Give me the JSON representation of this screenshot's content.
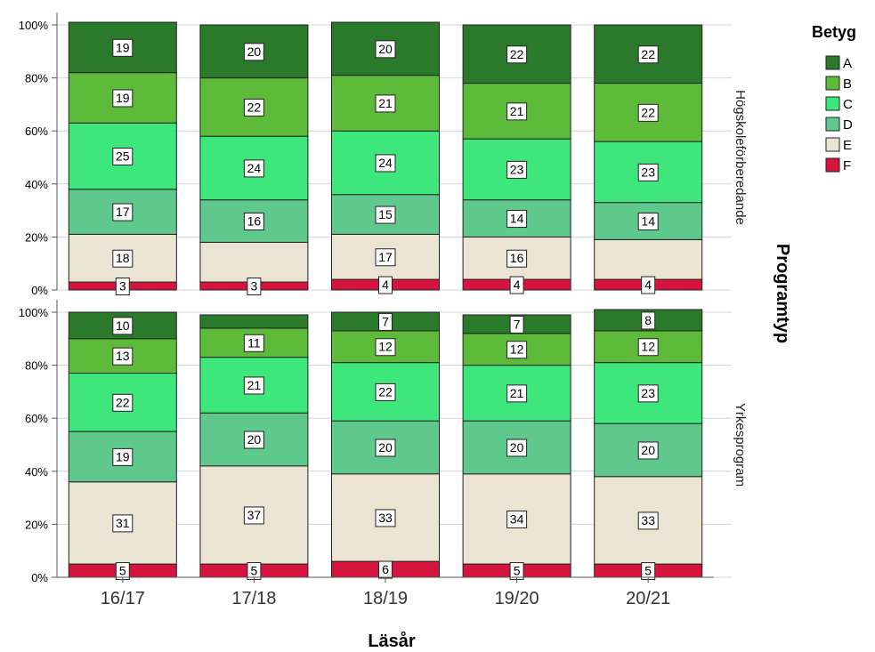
{
  "chart_data": {
    "type": "bar",
    "stacked": true,
    "percent": true,
    "xlabel": "Läsår",
    "facet_title": "Programtyp",
    "categories": [
      "16/17",
      "17/18",
      "18/19",
      "19/20",
      "20/21"
    ],
    "y_ticks": [
      "0%",
      "20%",
      "40%",
      "60%",
      "80%",
      "100%"
    ],
    "ylim": [
      0,
      100
    ],
    "legend": {
      "title": "Betyg",
      "placement": "top-right",
      "entries": [
        {
          "name": "A",
          "color": "#2b7a2b"
        },
        {
          "name": "B",
          "color": "#5dbb39"
        },
        {
          "name": "C",
          "color": "#3de77c"
        },
        {
          "name": "D",
          "color": "#5fc98d"
        },
        {
          "name": "E",
          "color": "#ebe4d2"
        },
        {
          "name": "F",
          "color": "#d6153f"
        }
      ]
    },
    "panels": [
      {
        "name": "Högskoleförberedande",
        "series": [
          {
            "name": "F",
            "values": [
              3,
              3,
              4,
              4,
              4
            ],
            "labels": [
              "3",
              "3",
              "4",
              "4",
              "4"
            ]
          },
          {
            "name": "E",
            "values": [
              18,
              15,
              17,
              16,
              15
            ],
            "labels": [
              "18",
              "",
              "17",
              "16",
              ""
            ]
          },
          {
            "name": "D",
            "values": [
              17,
              16,
              15,
              14,
              14
            ],
            "labels": [
              "17",
              "16",
              "15",
              "14",
              "14"
            ]
          },
          {
            "name": "C",
            "values": [
              25,
              24,
              24,
              23,
              23
            ],
            "labels": [
              "25",
              "24",
              "24",
              "23",
              "23"
            ]
          },
          {
            "name": "B",
            "values": [
              19,
              22,
              21,
              21,
              22
            ],
            "labels": [
              "19",
              "22",
              "21",
              "21",
              "22"
            ]
          },
          {
            "name": "A",
            "values": [
              19,
              20,
              20,
              22,
              22
            ],
            "labels": [
              "19",
              "20",
              "20",
              "22",
              "22"
            ]
          }
        ]
      },
      {
        "name": "Yrkesprogram",
        "series": [
          {
            "name": "F",
            "values": [
              5,
              5,
              6,
              5,
              5
            ],
            "labels": [
              "5",
              "5",
              "6",
              "5",
              "5"
            ]
          },
          {
            "name": "E",
            "values": [
              31,
              37,
              33,
              34,
              33
            ],
            "labels": [
              "31",
              "37",
              "33",
              "34",
              "33"
            ]
          },
          {
            "name": "D",
            "values": [
              19,
              20,
              20,
              20,
              20
            ],
            "labels": [
              "19",
              "20",
              "20",
              "20",
              "20"
            ]
          },
          {
            "name": "C",
            "values": [
              22,
              21,
              22,
              21,
              23
            ],
            "labels": [
              "22",
              "21",
              "22",
              "21",
              "23"
            ]
          },
          {
            "name": "B",
            "values": [
              13,
              11,
              12,
              12,
              12
            ],
            "labels": [
              "13",
              "11",
              "12",
              "12",
              "12"
            ]
          },
          {
            "name": "A",
            "values": [
              10,
              5,
              7,
              7,
              8
            ],
            "labels": [
              "10",
              "",
              "7",
              "7",
              "8"
            ]
          }
        ]
      }
    ]
  }
}
